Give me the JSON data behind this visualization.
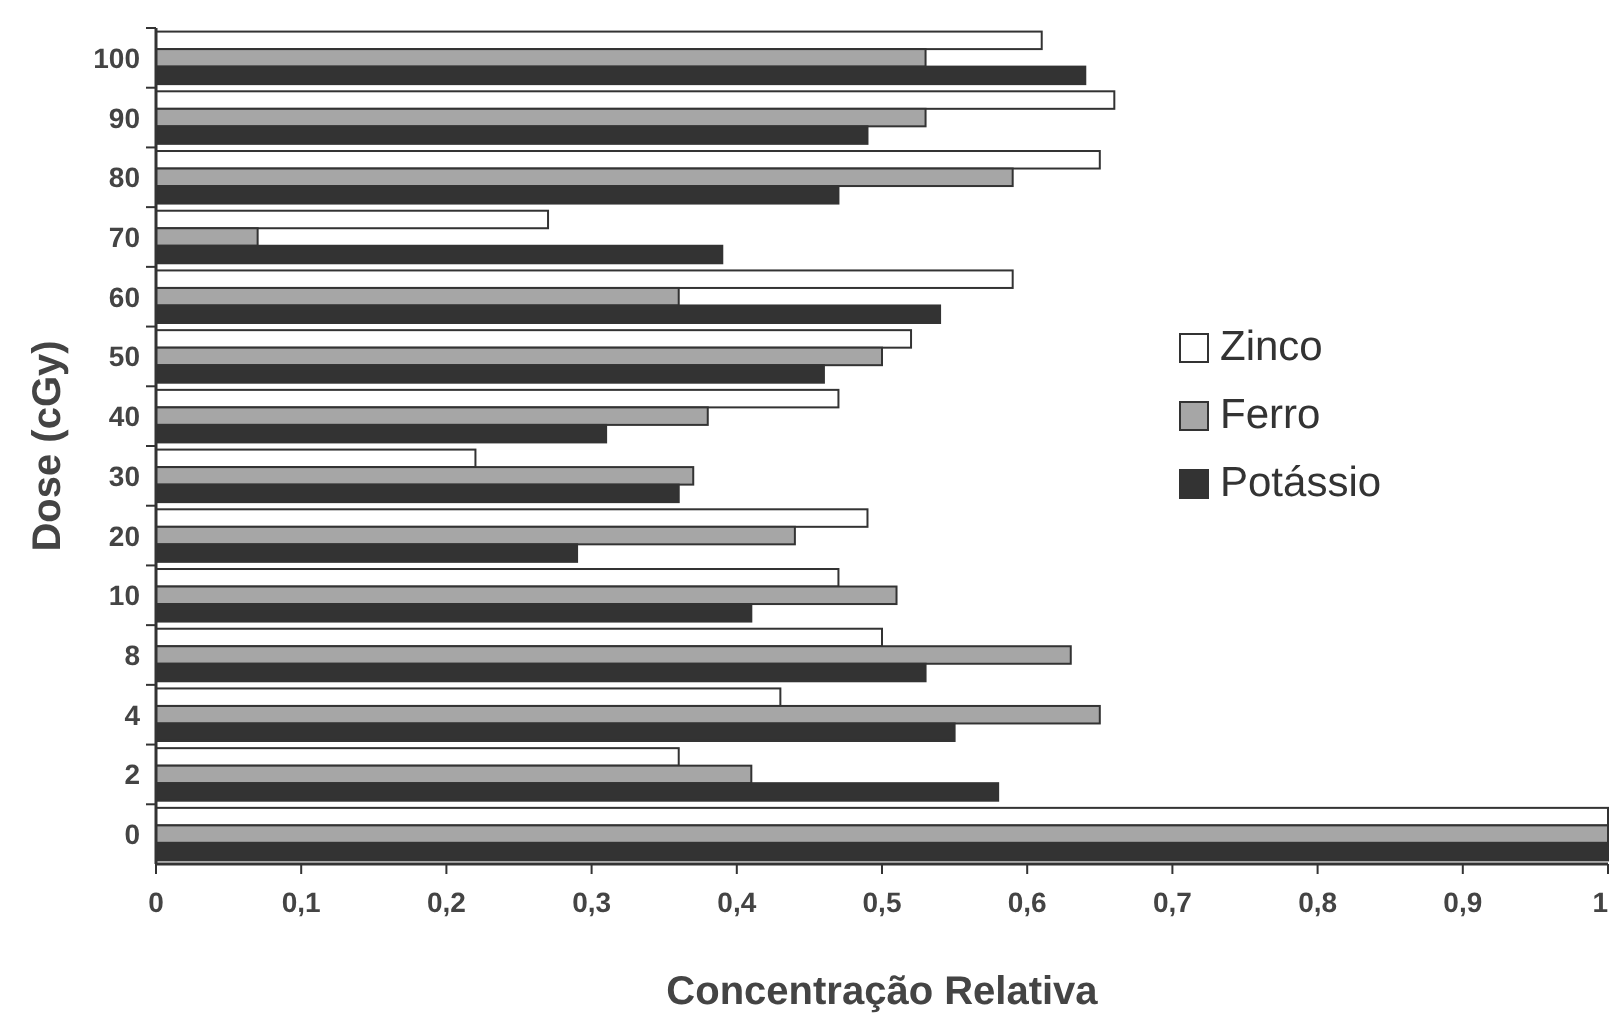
{
  "chart_data": {
    "type": "bar",
    "orientation": "horizontal",
    "xlabel": "Concentração Relativa",
    "ylabel": "Dose (cGy)",
    "categories": [
      "100",
      "90",
      "80",
      "70",
      "60",
      "50",
      "40",
      "30",
      "20",
      "10",
      "8",
      "4",
      "2",
      "0"
    ],
    "series": [
      {
        "name": "Zinco",
        "color": "#ffffff",
        "values": [
          0.61,
          0.66,
          0.65,
          0.27,
          0.59,
          0.52,
          0.47,
          0.22,
          0.49,
          0.47,
          0.5,
          0.43,
          0.36,
          1
        ]
      },
      {
        "name": "Ferro",
        "color": "#a6a6a6",
        "values": [
          0.53,
          0.53,
          0.59,
          0.07,
          0.36,
          0.5,
          0.38,
          0.37,
          0.44,
          0.51,
          0.63,
          0.65,
          0.41,
          1
        ]
      },
      {
        "name": "Potássio",
        "color": "#333333",
        "values": [
          0.64,
          0.49,
          0.47,
          0.39,
          0.54,
          0.46,
          0.31,
          0.36,
          0.29,
          0.41,
          0.53,
          0.55,
          0.58,
          1
        ]
      }
    ],
    "xlim": [
      0,
      1
    ],
    "xticks": [
      0,
      {
        "value": 0.1,
        "label": "0,1"
      },
      {
        "value": 0.2,
        "label": "0,2"
      },
      {
        "value": 0.3,
        "label": "0,3"
      },
      {
        "value": 0.4,
        "label": "0,4"
      },
      {
        "value": 0.5,
        "label": "0,5"
      },
      {
        "value": 0.6,
        "label": "0,6"
      },
      {
        "value": 0.7,
        "label": "0,7"
      },
      {
        "value": 0.8,
        "label": "0,8"
      },
      {
        "value": 0.9,
        "label": "0,9"
      },
      1
    ],
    "legend": "right",
    "grid": false
  }
}
